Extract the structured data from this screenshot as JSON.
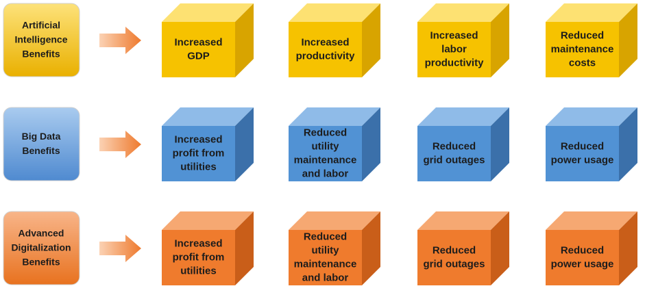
{
  "rows": [
    {
      "label": [
        "Artificial",
        "Intelligence",
        "Benefits"
      ],
      "items": [
        [
          "Increased",
          "GDP"
        ],
        [
          "Increased",
          "productivity"
        ],
        [
          "Increased",
          "labor",
          "productivity"
        ],
        [
          "Reduced",
          "maintenance",
          "costs"
        ]
      ]
    },
    {
      "label": [
        "Big Data",
        "Benefits"
      ],
      "items": [
        [
          "Increased",
          "profit from",
          "utilities"
        ],
        [
          "Reduced",
          "utility",
          "maintenance",
          "and labor"
        ],
        [
          "Reduced",
          "grid outages"
        ],
        [
          "Reduced",
          "power usage"
        ]
      ]
    },
    {
      "label": [
        "Advanced",
        "Digitalization",
        "Benefits"
      ],
      "items": [
        [
          "Increased",
          "profit from",
          "utilities"
        ],
        [
          "Reduced",
          "utility",
          "maintenance",
          "and labor"
        ],
        [
          "Reduced",
          "grid outages"
        ],
        [
          "Reduced",
          "power usage"
        ]
      ]
    }
  ]
}
